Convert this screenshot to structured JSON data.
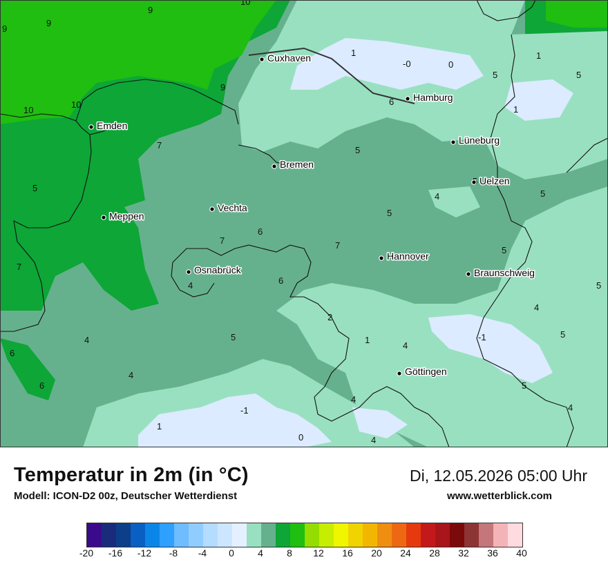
{
  "title": "Temperatur in 2m (in °C)",
  "model": "Modell: ICON-D2 00z, Deutscher Wetterdienst",
  "datetime": "Di, 12.05.2026 05:00 Uhr",
  "website": "www.wetterblick.com",
  "cities": [
    {
      "name": "Cuxhaven"
    },
    {
      "name": "Hamburg"
    },
    {
      "name": "Emden"
    },
    {
      "name": "Lüneburg"
    },
    {
      "name": "Bremen"
    },
    {
      "name": "Uelzen"
    },
    {
      "name": "Meppen"
    },
    {
      "name": "Vechta"
    },
    {
      "name": "Hannover"
    },
    {
      "name": "Osnabrück"
    },
    {
      "name": "Braunschweig"
    },
    {
      "name": "Göttingen"
    }
  ],
  "value_labels": [
    "9",
    "9",
    "10",
    "9",
    "10",
    "10",
    "9",
    "1",
    "-0",
    "0",
    "1",
    "5",
    "5",
    "6",
    "1",
    "5",
    "7",
    "5",
    "5",
    "4",
    "5",
    "6",
    "7",
    "7",
    "5",
    "7",
    "4",
    "6",
    "5",
    "5",
    "2",
    "1",
    "4",
    "-1",
    "4",
    "5",
    "4",
    "6",
    "6",
    "5",
    "4",
    "-1",
    "4",
    "1",
    "0",
    "4",
    "5",
    "4"
  ],
  "legend": {
    "colors": [
      "#3b0a8c",
      "#1a2b7c",
      "#0c3e8a",
      "#0a5fc2",
      "#0a86e8",
      "#2ea0ff",
      "#6fbcff",
      "#91ccff",
      "#b4dcff",
      "#cde6ff",
      "#e4f0ff",
      "#99e0c1",
      "#66b18d",
      "#0da637",
      "#1fbe10",
      "#95dd00",
      "#c7ee00",
      "#f0f500",
      "#f0d300",
      "#f3b600",
      "#ef8e11",
      "#ee6813",
      "#e53a0e",
      "#c4191a",
      "#a8151a",
      "#7c0a0a",
      "#8d3434",
      "#c4767a",
      "#f4b4b7",
      "#ffdbe0"
    ],
    "ticks": [
      "-20",
      "-16",
      "-12",
      "-8",
      "-4",
      "0",
      "4",
      "8",
      "12",
      "16",
      "20",
      "24",
      "28",
      "32",
      "36",
      "40"
    ]
  }
}
